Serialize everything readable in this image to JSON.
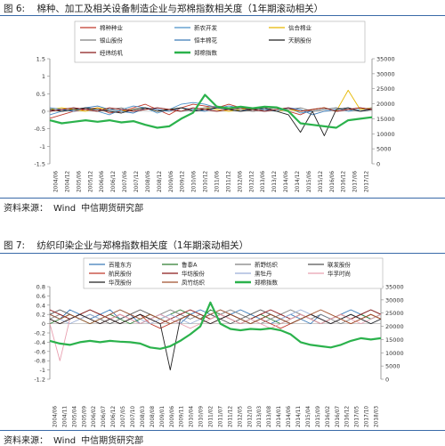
{
  "figures": [
    {
      "fig_no": "图 6:",
      "title": "棉种、加工及相关设备制造企业与郑棉指数相关度（1年期滚动相关）",
      "source_label": "资料来源：",
      "source_value": "Wind",
      "source_org": "中信期货研究部"
    },
    {
      "fig_no": "图 7:",
      "title": "纺织印染企业与郑棉指数相关度（1年期滚动相关）",
      "source_label": "资料来源：",
      "source_value": "Wind",
      "source_org": "中信期货研究部"
    }
  ],
  "chart_data": [
    {
      "type": "line",
      "left_axis": {
        "min": -1.5,
        "max": 1.5,
        "ticks": [
          "1.5",
          "1",
          "0.5",
          "0",
          "-0.5",
          "-1",
          "-1.5"
        ]
      },
      "right_axis": {
        "min": 0,
        "max": 35000,
        "ticks": [
          "35000",
          "30000",
          "25000",
          "20000",
          "15000",
          "10000",
          "5000",
          "0"
        ]
      },
      "x_ticks": [
        "2004/06",
        "2004/12",
        "2005/06",
        "2005/12",
        "2006/06",
        "2006/12",
        "2007/06",
        "2007/12",
        "2008/06",
        "2008/12",
        "2009/06",
        "2009/12",
        "2010/06",
        "2010/12",
        "2011/06",
        "2011/12",
        "2012/06",
        "2012/12",
        "2013/06",
        "2013/12",
        "2014/06",
        "2014/12",
        "2015/06",
        "2015/12",
        "2016/06",
        "2016/12",
        "2017/06",
        "2017/12"
      ],
      "legend_position": "top",
      "colors": {
        "s1": "#c0392b",
        "s2": "#4a90c8",
        "s3": "#2e7d32",
        "s4": "#7f7f7f",
        "s5": "#e6b800",
        "s6": "#3a7ab8",
        "s7": "#222222",
        "s8": "#8b1a1a",
        "s9": "#e8b0c0",
        "zheng": "#2bb24c"
      },
      "series": [
        {
          "name": "棉种种业",
          "axis": "left",
          "values": [
            -0.2,
            -0.1,
            0.0,
            0.05,
            0.1,
            -0.05,
            0.0,
            0.1,
            0.2,
            0.05,
            -0.1,
            0.1,
            0.2,
            0.15,
            0.1,
            0.2,
            0.1,
            0.0,
            0.05,
            0.1,
            0.0,
            -0.1,
            0.05,
            0.1,
            0.0,
            0.05,
            0.1,
            0.05
          ]
        },
        {
          "name": "新农开发",
          "axis": "left",
          "values": [
            -0.1,
            0.0,
            0.05,
            0.1,
            0.0,
            -0.1,
            0.05,
            0.15,
            0.1,
            -0.05,
            0.05,
            0.2,
            0.25,
            0.2,
            0.1,
            0.15,
            0.1,
            0.05,
            0.0,
            0.05,
            0.1,
            -0.05,
            0.0,
            0.05,
            0.1,
            0.0,
            0.05,
            0.1
          ]
        },
        {
          "name": "信合棉业",
          "axis": "left",
          "values": [
            0.05,
            0.1,
            0.05,
            0.0,
            0.1,
            0.05,
            0.0,
            0.05,
            0.1,
            0.0,
            0.05,
            0.1,
            0.05,
            0.1,
            0.05,
            0.0,
            0.05,
            0.1,
            0.05,
            0.0,
            0.05,
            0.0,
            0.05,
            0.1,
            0.0,
            0.6,
            0.05,
            0.1
          ]
        },
        {
          "name": "银山股份",
          "axis": "left",
          "values": [
            0.0,
            0.05,
            0.1,
            0.05,
            0.0,
            0.05,
            0.1,
            0.0,
            0.05,
            0.1,
            0.05,
            0.0,
            0.05,
            0.1,
            0.15,
            0.1,
            0.05,
            0.0,
            0.05,
            0.1,
            0.05,
            0.1,
            0.0,
            0.05,
            0.1,
            0.05,
            0.0,
            0.1
          ]
        },
        {
          "name": "恒丰棉花",
          "axis": "left",
          "values": [
            0.1,
            0.05,
            0.0,
            0.1,
            0.15,
            0.05,
            0.0,
            -0.05,
            0.1,
            0.05,
            0.0,
            0.1,
            0.05,
            0.0,
            0.1,
            0.05,
            0.0,
            0.1,
            0.05,
            0.0,
            0.1,
            0.05,
            -0.1,
            0.0,
            0.05,
            0.1,
            0.0,
            0.05
          ]
        },
        {
          "name": "天鹅股份",
          "axis": "left",
          "values": [
            0.05,
            0.0,
            0.05,
            0.1,
            0.05,
            0.0,
            -0.05,
            0.05,
            0.1,
            0.0,
            0.05,
            0.1,
            0.0,
            0.05,
            0.1,
            0.05,
            0.0,
            0.05,
            0.1,
            0.0,
            -0.1,
            -0.6,
            0.0,
            -0.7,
            0.05,
            0.1,
            0.0,
            0.05
          ]
        },
        {
          "name": "经纬纺机",
          "axis": "left",
          "values": [
            0.0,
            0.05,
            0.1,
            0.05,
            0.0,
            0.1,
            0.05,
            0.0,
            0.05,
            0.1,
            0.05,
            0.0,
            0.1,
            0.05,
            0.0,
            0.05,
            0.1,
            0.05,
            0.0,
            0.05,
            0.1,
            0.0,
            0.05,
            0.1,
            0.0,
            0.05,
            0.1,
            0.05
          ]
        },
        {
          "name": "郑棉指数",
          "axis": "right",
          "values": [
            14500,
            13500,
            14000,
            14500,
            14000,
            14500,
            13800,
            14200,
            13000,
            12000,
            12500,
            15000,
            17000,
            23000,
            19000,
            18500,
            19000,
            18500,
            19000,
            18800,
            17500,
            13500,
            13000,
            12500,
            12000,
            14500,
            15000,
            15500
          ]
        }
      ]
    },
    {
      "type": "line",
      "left_axis": {
        "min": -1.2,
        "max": 0.8,
        "ticks": [
          "0.8",
          "0.6",
          "0.4",
          "0.2",
          "0",
          "-0.2",
          "-0.4",
          "-0.6",
          "-0.8",
          "-1",
          "-1.2"
        ]
      },
      "right_axis": {
        "min": 0,
        "max": 35000,
        "ticks": [
          "35000",
          "30000",
          "25000",
          "20000",
          "15000",
          "10000",
          "5000",
          "0"
        ]
      },
      "x_ticks": [
        "2004/06",
        "2004/11",
        "2005/04",
        "2005/09",
        "2006/02",
        "2006/07",
        "2006/12",
        "2007/05",
        "2007/10",
        "2008/03",
        "2008/08",
        "2009/01",
        "2009/06",
        "2009/11",
        "2010/04",
        "2010/09",
        "2011/02",
        "2011/07",
        "2011/12",
        "2012/05",
        "2012/10",
        "2013/03",
        "2013/08",
        "2014/01",
        "2014/06",
        "2014/11",
        "2015/04",
        "2015/09",
        "2016/02",
        "2016/07",
        "2016/12",
        "2017/05",
        "2017/10",
        "2018/03"
      ],
      "legend_position": "top",
      "series": [
        {
          "name": "百隆东方",
          "axis": "left",
          "values": [
            0.2,
            0.1,
            0.3,
            0.2,
            0.1,
            0.2,
            0.3,
            0.1,
            0.2,
            0.0,
            0.1,
            0.2,
            0.1,
            0.0,
            0.2,
            0.3,
            0.2,
            0.1,
            0.2,
            0.3,
            0.2,
            0.1,
            0.0,
            0.1,
            0.2,
            0.1,
            0.0,
            0.2,
            0.1,
            0.2,
            0.3,
            0.2,
            0.1,
            0.2
          ]
        },
        {
          "name": "鲁泰A",
          "axis": "left",
          "values": [
            0.0,
            0.1,
            0.2,
            0.1,
            0.0,
            0.1,
            0.2,
            0.1,
            0.0,
            0.1,
            0.2,
            0.1,
            0.2,
            0.3,
            0.2,
            0.1,
            0.3,
            0.2,
            0.1,
            0.0,
            0.1,
            0.2,
            0.1,
            0.0,
            0.1,
            0.2,
            0.1,
            0.0,
            0.1,
            0.2,
            0.1,
            0.2,
            0.1,
            0.2
          ]
        },
        {
          "name": "新野纺织",
          "axis": "left",
          "values": [
            0.1,
            0.2,
            0.1,
            0.2,
            0.3,
            0.2,
            0.1,
            0.2,
            0.1,
            0.0,
            0.1,
            0.2,
            0.3,
            0.2,
            0.1,
            0.2,
            0.1,
            0.2,
            0.3,
            0.2,
            0.1,
            0.0,
            0.1,
            0.2,
            0.3,
            0.2,
            0.1,
            0.2,
            0.1,
            0.0,
            0.1,
            0.2,
            0.3,
            0.2
          ]
        },
        {
          "name": "联发股份",
          "axis": "left",
          "values": [
            0.2,
            0.3,
            0.2,
            0.1,
            0.2,
            0.1,
            0.0,
            0.1,
            0.2,
            0.3,
            0.2,
            0.1,
            0.0,
            0.1,
            0.2,
            0.1,
            0.2,
            0.1,
            0.0,
            0.1,
            0.2,
            0.3,
            0.2,
            0.1,
            0.0,
            0.1,
            0.2,
            0.1,
            0.0,
            0.1,
            0.2,
            0.1,
            0.2,
            0.1
          ]
        },
        {
          "name": "航民股份",
          "axis": "left",
          "values": [
            0.1,
            0.0,
            0.1,
            0.2,
            0.1,
            0.0,
            0.1,
            0.2,
            0.1,
            0.2,
            0.0,
            -0.1,
            0.0,
            0.1,
            0.2,
            0.1,
            0.0,
            0.1,
            0.2,
            0.1,
            0.0,
            0.1,
            0.0,
            -0.1,
            0.0,
            0.1,
            0.2,
            0.1,
            0.0,
            0.1,
            0.0,
            0.1,
            0.2,
            0.1
          ]
        },
        {
          "name": "华纺股份",
          "axis": "left",
          "values": [
            0.3,
            0.2,
            0.1,
            0.2,
            0.3,
            0.2,
            0.1,
            0.0,
            0.1,
            0.2,
            0.1,
            0.0,
            0.1,
            0.2,
            0.3,
            0.2,
            0.1,
            0.2,
            0.1,
            0.0,
            0.1,
            0.2,
            0.3,
            0.2,
            0.1,
            0.2,
            0.1,
            0.0,
            0.1,
            0.2,
            0.1,
            0.2,
            0.3,
            0.2
          ]
        },
        {
          "name": "黑牡丹",
          "axis": "left",
          "values": [
            0.2,
            0.1,
            0.0,
            0.1,
            0.2,
            0.1,
            0.2,
            0.3,
            0.2,
            0.1,
            0.0,
            0.1,
            0.2,
            0.1,
            0.0,
            0.1,
            0.2,
            0.3,
            0.2,
            0.1,
            0.0,
            0.1,
            0.2,
            0.1,
            0.2,
            0.3,
            0.2,
            0.1,
            0.0,
            0.1,
            0.2,
            0.1,
            0.0,
            0.1
          ]
        },
        {
          "name": "华孚时尚",
          "axis": "left",
          "values": [
            0.0,
            -0.8,
            0.1,
            0.2,
            0.1,
            0.0,
            0.1,
            0.2,
            0.1,
            0.0,
            0.1,
            0.2,
            0.1,
            0.0,
            -0.1,
            0.0,
            0.1,
            0.2,
            0.1,
            0.0,
            0.1,
            0.0,
            -0.1,
            0.0,
            0.1,
            0.2,
            0.1,
            0.0,
            0.1,
            0.2,
            0.1,
            0.0,
            0.1,
            0.2
          ]
        },
        {
          "name": "华茂股份",
          "axis": "left",
          "values": [
            0.1,
            0.0,
            0.1,
            0.2,
            0.1,
            0.0,
            0.1,
            0.0,
            0.1,
            0.2,
            0.1,
            0.0,
            -1.0,
            0.1,
            0.2,
            0.1,
            0.0,
            0.1,
            0.2,
            0.1,
            0.0,
            0.1,
            0.2,
            0.1,
            0.0,
            0.1,
            0.2,
            0.1,
            0.0,
            0.1,
            0.2,
            0.1,
            0.0,
            0.1
          ]
        },
        {
          "name": "凤竹纺织",
          "axis": "left",
          "values": [
            0.2,
            0.1,
            0.2,
            0.1,
            0.0,
            0.1,
            0.2,
            0.3,
            0.2,
            0.1,
            0.2,
            0.1,
            0.0,
            0.1,
            0.2,
            0.1,
            0.2,
            0.3,
            0.2,
            0.1,
            0.0,
            0.1,
            0.2,
            0.1,
            0.0,
            0.1,
            0.2,
            0.3,
            0.2,
            0.1,
            0.0,
            0.1,
            0.2,
            0.1
          ]
        },
        {
          "name": "郑棉指数",
          "axis": "right",
          "values": [
            14500,
            13500,
            13000,
            14000,
            14500,
            14000,
            14500,
            14200,
            14000,
            13500,
            12000,
            11500,
            12500,
            14500,
            17000,
            20000,
            29000,
            21000,
            19000,
            18500,
            19000,
            18800,
            19200,
            18500,
            17000,
            14000,
            13000,
            12500,
            12000,
            13000,
            14500,
            15500,
            15000,
            15500
          ]
        }
      ]
    }
  ]
}
